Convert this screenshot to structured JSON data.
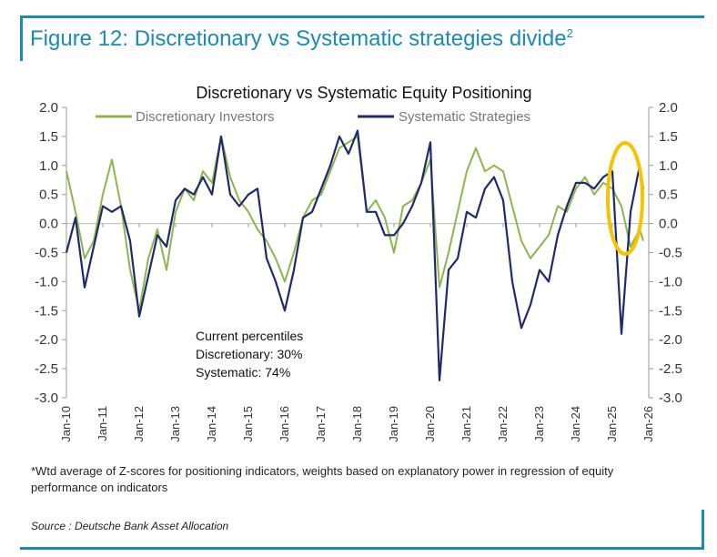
{
  "figure": {
    "title_main": "Figure 12: Discretionary vs Systematic strategies divide",
    "title_sup": "2",
    "footnote": "*Wtd average of Z-scores for positioning indicators, weights based on explanatory power in regression of equity performance on indicators",
    "source": "Source : Deutsche Bank Asset Allocation"
  },
  "chart_data": {
    "type": "line",
    "title": "Discretionary  vs Systematic Equity Positioning",
    "ylim": [
      -3.0,
      2.0
    ],
    "y_ticks": [
      "2.0",
      "1.5",
      "1.0",
      "0.5",
      "0.0",
      "-0.5",
      "-1.0",
      "-1.5",
      "-2.0",
      "-2.5",
      "-3.0"
    ],
    "x_ticks": [
      "Jan-10",
      "Jan-11",
      "Jan-12",
      "Jan-13",
      "Jan-14",
      "Jan-15",
      "Jan-16",
      "Jan-17",
      "Jan-18",
      "Jan-19",
      "Jan-20",
      "Jan-21",
      "Jan-22",
      "Jan-23",
      "Jan-24",
      "Jan-25",
      "Jan-26"
    ],
    "legend_position": "top",
    "annotation": {
      "heading": "Current percentiles",
      "line1": "Discretionary: 30%",
      "line2": "Systematic: 74%"
    },
    "highlight": "circle around latest values (2025-2026)",
    "series": [
      {
        "name": "Discretionary Investors",
        "color": "#8db64a",
        "x": [
          2010.0,
          2010.25,
          2010.5,
          2010.75,
          2011.0,
          2011.25,
          2011.5,
          2011.75,
          2012.0,
          2012.25,
          2012.5,
          2012.75,
          2013.0,
          2013.25,
          2013.5,
          2013.75,
          2014.0,
          2014.25,
          2014.5,
          2014.75,
          2015.0,
          2015.25,
          2015.5,
          2015.75,
          2016.0,
          2016.25,
          2016.5,
          2016.75,
          2017.0,
          2017.25,
          2017.5,
          2017.75,
          2018.0,
          2018.25,
          2018.5,
          2018.75,
          2019.0,
          2019.25,
          2019.5,
          2019.75,
          2020.0,
          2020.25,
          2020.5,
          2020.75,
          2021.0,
          2021.25,
          2021.5,
          2021.75,
          2022.0,
          2022.25,
          2022.5,
          2022.75,
          2023.0,
          2023.25,
          2023.5,
          2023.75,
          2024.0,
          2024.25,
          2024.5,
          2024.75,
          2025.0,
          2025.25,
          2025.5,
          2025.75,
          2025.85
        ],
        "values": [
          0.9,
          0.2,
          -0.6,
          -0.3,
          0.5,
          1.1,
          0.3,
          -0.8,
          -1.5,
          -0.6,
          -0.1,
          -0.8,
          0.2,
          0.6,
          0.4,
          0.9,
          0.7,
          1.5,
          0.8,
          0.4,
          0.2,
          -0.1,
          -0.3,
          -0.6,
          -1.0,
          -0.5,
          0.1,
          0.4,
          0.5,
          0.9,
          1.3,
          1.4,
          1.5,
          0.2,
          0.4,
          0.1,
          -0.5,
          0.3,
          0.4,
          0.7,
          1.1,
          -1.1,
          -0.5,
          0.2,
          0.9,
          1.3,
          0.9,
          1.0,
          0.9,
          0.3,
          -0.3,
          -0.6,
          -0.4,
          -0.2,
          0.3,
          0.2,
          0.6,
          0.8,
          0.5,
          0.7,
          0.6,
          0.3,
          -0.4,
          -0.1,
          -0.3
        ]
      },
      {
        "name": "Systematic Strategies",
        "color": "#1f2a6e",
        "x": [
          2010.0,
          2010.25,
          2010.5,
          2010.75,
          2011.0,
          2011.25,
          2011.5,
          2011.75,
          2012.0,
          2012.25,
          2012.5,
          2012.75,
          2013.0,
          2013.25,
          2013.5,
          2013.75,
          2014.0,
          2014.25,
          2014.5,
          2014.75,
          2015.0,
          2015.25,
          2015.5,
          2015.75,
          2016.0,
          2016.25,
          2016.5,
          2016.75,
          2017.0,
          2017.25,
          2017.5,
          2017.75,
          2018.0,
          2018.25,
          2018.5,
          2018.75,
          2019.0,
          2019.25,
          2019.5,
          2019.75,
          2020.0,
          2020.25,
          2020.5,
          2020.75,
          2021.0,
          2021.25,
          2021.5,
          2021.75,
          2022.0,
          2022.25,
          2022.5,
          2022.75,
          2023.0,
          2023.25,
          2023.5,
          2023.75,
          2024.0,
          2024.25,
          2024.5,
          2024.75,
          2025.0,
          2025.25,
          2025.5,
          2025.75,
          2025.85
        ],
        "values": [
          -0.5,
          0.1,
          -1.1,
          -0.4,
          0.3,
          0.2,
          0.3,
          -0.3,
          -1.6,
          -0.9,
          -0.2,
          -0.4,
          0.4,
          0.6,
          0.5,
          0.8,
          0.5,
          1.5,
          0.5,
          0.3,
          0.5,
          0.6,
          -0.6,
          -1.0,
          -1.5,
          -0.8,
          0.1,
          0.2,
          0.6,
          1.0,
          1.5,
          1.2,
          1.6,
          0.2,
          0.2,
          -0.2,
          -0.2,
          0.0,
          0.3,
          0.7,
          1.4,
          -2.7,
          -0.8,
          -0.6,
          0.2,
          0.1,
          0.6,
          0.8,
          0.4,
          -1.0,
          -1.8,
          -1.4,
          -0.8,
          -1.0,
          -0.2,
          0.3,
          0.7,
          0.7,
          0.6,
          0.8,
          0.9,
          -1.9,
          0.2,
          1.0,
          0.6
        ]
      }
    ]
  }
}
